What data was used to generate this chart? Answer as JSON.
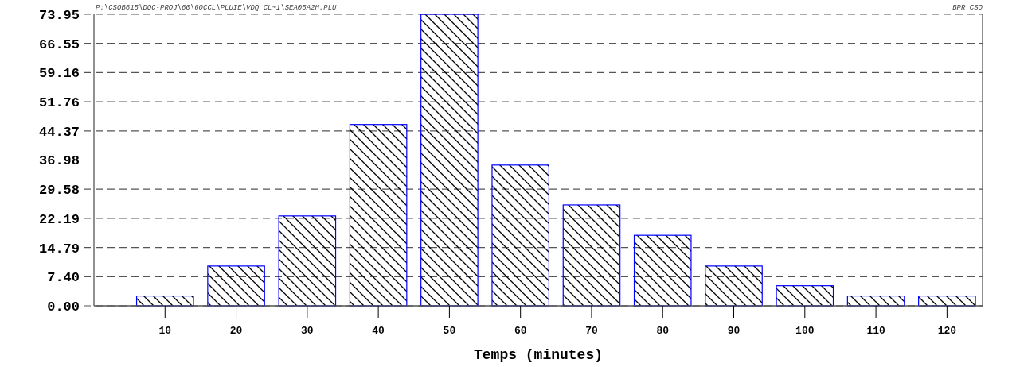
{
  "chart_data": {
    "type": "bar",
    "xlabel": "Temps (minutes)",
    "x": [
      10,
      20,
      30,
      40,
      50,
      60,
      70,
      80,
      90,
      100,
      110,
      120
    ],
    "values": [
      2.5,
      10.1,
      22.8,
      46.0,
      73.95,
      35.7,
      25.6,
      17.9,
      10.1,
      5.1,
      2.5,
      2.5
    ],
    "color": "#0000ff",
    "xlim": [
      0,
      125
    ],
    "xticks": [
      10,
      20,
      30,
      40,
      50,
      60,
      70,
      80,
      90,
      100,
      110,
      120
    ],
    "ylim": [
      0,
      73.95
    ],
    "yticks": [
      {
        "value": 0,
        "label": "0.00"
      },
      {
        "value": 7.4,
        "label": "7.40"
      },
      14.79,
      22.19,
      29.58,
      36.98,
      44.37,
      51.76,
      59.16,
      66.55,
      73.95
    ],
    "grid": "y",
    "annotations": [
      "P:\\CSOB615\\DOC-PROJ\\60\\60CCL\\PLUIE\\VDQ_CL~1\\SEA05A2H.PLU",
      "BPR CSO"
    ]
  }
}
